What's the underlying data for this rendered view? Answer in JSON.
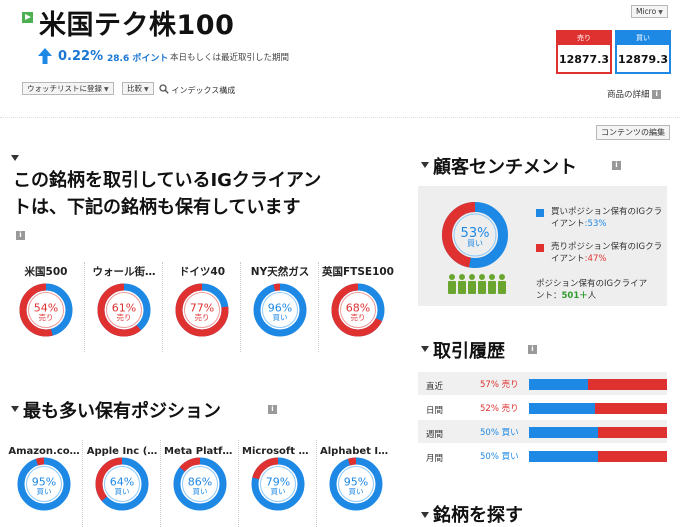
{
  "header": {
    "title": "米国テク株100",
    "change_pct": "0.22%",
    "change_points": "28.6 ポイント",
    "change_note": "本日もしくは最近取引した期間",
    "watchlist_label": "ウォッチリストに登録",
    "compare_label": "比較",
    "index_components_label": "インデックス構成",
    "size_select": "Micro",
    "product_details_label": "商品の詳細",
    "contents_edit_label": "コンテンツの編集"
  },
  "quote": {
    "sell_label": "売り",
    "sell_price": "12877.3",
    "buy_label": "買い",
    "buy_price": "12879.3"
  },
  "also_held": {
    "title_line1": "この銘柄を取引しているIGクライアン",
    "title_line2": "トは、下記の銘柄も保有しています",
    "items": [
      {
        "name": "米国500",
        "pct": "54%",
        "side": "売り",
        "sell_fraction": 0.54
      },
      {
        "name": "ウォール街…",
        "pct": "61%",
        "side": "売り",
        "sell_fraction": 0.61
      },
      {
        "name": "ドイツ40",
        "pct": "77%",
        "side": "売り",
        "sell_fraction": 0.77
      },
      {
        "name": "NY天然ガス",
        "pct": "96%",
        "side": "買い",
        "sell_fraction": 0.04
      },
      {
        "name": "英国FTSE100",
        "pct": "68%",
        "side": "売り",
        "sell_fraction": 0.68
      }
    ]
  },
  "popular": {
    "title": "最も多い保有ポジション",
    "items": [
      {
        "name": "Amazon.co…",
        "pct": "95%",
        "side": "買い",
        "sell_fraction": 0.05
      },
      {
        "name": "Apple Inc (…",
        "pct": "64%",
        "side": "買い",
        "sell_fraction": 0.36
      },
      {
        "name": "Meta Platfo…",
        "pct": "86%",
        "side": "買い",
        "sell_fraction": 0.14
      },
      {
        "name": "Microsoft C…",
        "pct": "79%",
        "side": "買い",
        "sell_fraction": 0.21
      },
      {
        "name": "Alphabet In…",
        "pct": "95%",
        "side": "買い",
        "sell_fraction": 0.05
      }
    ]
  },
  "sentiment": {
    "title": "顧客センチメント",
    "pct": "53%",
    "side": "買い",
    "sell_fraction": 0.47,
    "buy_text": "買いポジション保有のIGクライアント",
    "buy_pct": ":53%",
    "sell_text": "売りポジション保有のIGクライアント",
    "sell_pct": ":47%",
    "total_text_1": "ポジション保有のIGクライア",
    "total_text_2": "ント：",
    "total_count": "501＋",
    "total_unit": "人"
  },
  "history": {
    "title": "取引履歴",
    "rows": [
      {
        "period": "直近",
        "value": "57% 売り",
        "side": "sell",
        "buy_fraction": 0.43
      },
      {
        "period": "日間",
        "value": "52% 売り",
        "side": "sell",
        "buy_fraction": 0.48
      },
      {
        "period": "週間",
        "value": "50% 買い",
        "side": "buy",
        "buy_fraction": 0.5
      },
      {
        "period": "月間",
        "value": "50% 買い",
        "side": "buy",
        "buy_fraction": 0.5
      }
    ]
  },
  "find": {
    "title": "銘柄を探す"
  },
  "colors": {
    "buy": "#1e88e5",
    "sell": "#e03131",
    "buy_light": "#90caf9",
    "sell_light": "#ef9a9a",
    "accent_green": "#4caf50"
  },
  "icons": [
    "arrow-up-icon",
    "magnifier-icon",
    "info-icon",
    "person-icon",
    "triangle-down-icon"
  ]
}
